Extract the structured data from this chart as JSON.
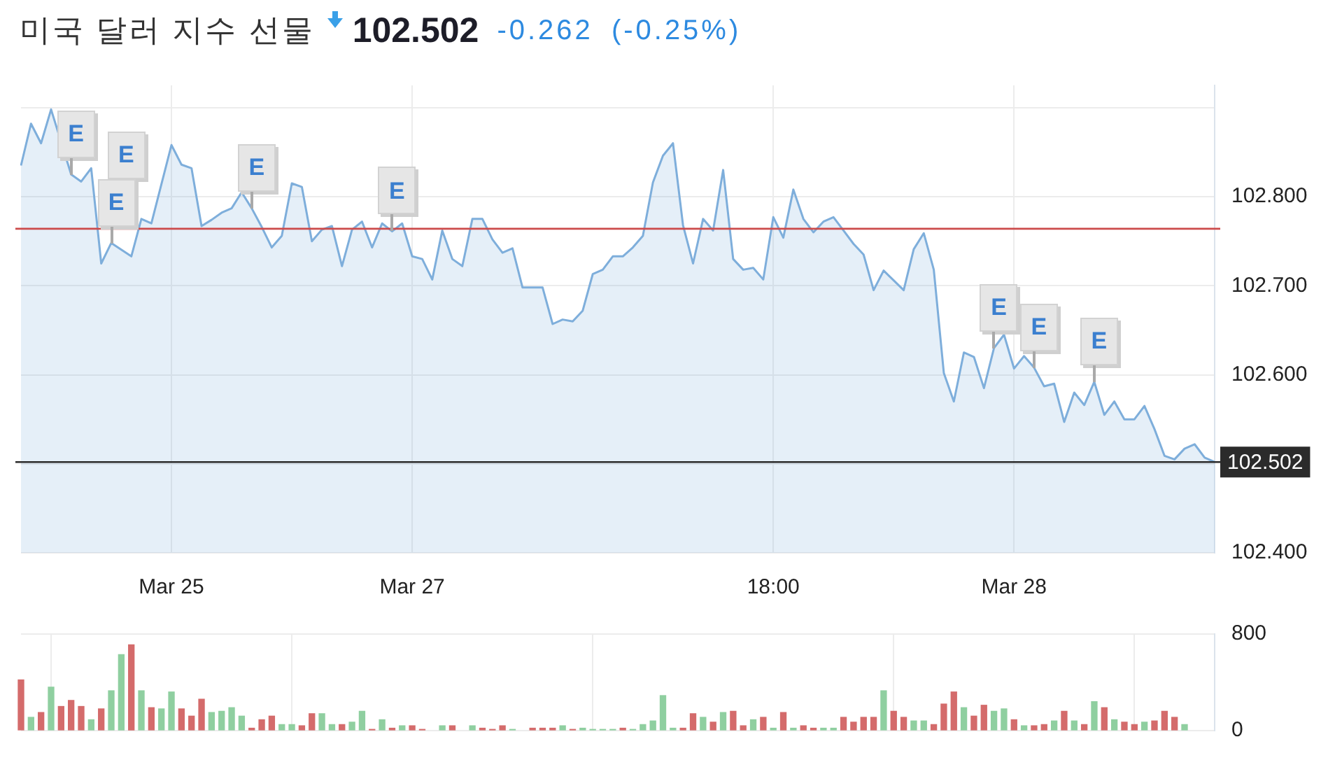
{
  "chart_data": [
    {
      "type": "area",
      "title": "미국 달러 지수 선물",
      "subtitle": "102.502 -0.262 (-0.25%)",
      "annotations": [
        {
          "text": "E",
          "y": 102.825
        },
        "E",
        {
          "text": "E",
          "y": 102.748
        },
        {
          "text": "E",
          "y": 102.787
        },
        {
          "text": "E",
          "y": 102.761
        },
        {
          "text": "E",
          "y": 102.63
        },
        {
          "text": "E",
          "y": 102.608
        },
        {
          "text": "E",
          "y": 102.592
        }
      ],
      "categories": [
        null,
        null,
        null,
        null,
        null,
        null,
        null,
        null,
        null,
        null,
        null,
        null,
        null,
        null,
        null,
        "Mar 25",
        null,
        null,
        null,
        null,
        null,
        null,
        null,
        null,
        null,
        null,
        null,
        null,
        null,
        null,
        null,
        null,
        null,
        null,
        null,
        null,
        null,
        null,
        null,
        "Mar 27",
        null,
        null,
        null,
        null,
        null,
        null,
        null,
        null,
        null,
        null,
        null,
        null,
        null,
        null,
        null,
        null,
        null,
        null,
        null,
        null,
        null,
        null,
        null,
        null,
        null,
        null,
        null,
        null,
        null,
        null,
        null,
        null,
        null,
        null,
        null,
        "18:00",
        null,
        null,
        null,
        null,
        null,
        null,
        null,
        null,
        null,
        null,
        null,
        null,
        null,
        null,
        null,
        null,
        null,
        null,
        null,
        null,
        null,
        null,
        null,
        "Mar 28",
        null,
        null,
        null,
        null,
        null,
        null,
        null,
        null,
        null,
        null,
        null,
        null,
        null,
        null,
        null,
        null,
        null,
        null,
        null,
        null
      ],
      "values": [
        102.835,
        102.882,
        102.86,
        102.898,
        null,
        102.825,
        102.817,
        102.832,
        102.725,
        102.748,
        null,
        102.733,
        102.775,
        102.77,
        102.814,
        102.858,
        102.836,
        102.832,
        102.767,
        102.774,
        102.782,
        102.787,
        102.805,
        102.787,
        102.766,
        102.743,
        102.756,
        102.815,
        102.811,
        102.75,
        102.763,
        102.767,
        102.722,
        102.763,
        102.772,
        102.743,
        102.77,
        102.761,
        102.77,
        102.733,
        102.73,
        102.707,
        102.762,
        102.73,
        102.722,
        102.775,
        102.775,
        102.752,
        102.737,
        102.742,
        102.698,
        102.698,
        102.698,
        102.657,
        102.662,
        102.66,
        102.672,
        102.713,
        102.718,
        102.733,
        102.733,
        102.743,
        102.756,
        102.816,
        102.846,
        102.86,
        102.768,
        102.725,
        102.775,
        102.762,
        102.83,
        102.73,
        102.718,
        102.72,
        102.707,
        102.777,
        102.754,
        102.808,
        102.775,
        102.76,
        102.772,
        102.777,
        102.762,
        102.747,
        102.735,
        102.695,
        102.717,
        102.706,
        102.695,
        102.741,
        102.759,
        102.718,
        102.602,
        102.57,
        102.625,
        102.62,
        102.585,
        102.63,
        102.645,
        102.607,
        102.621,
        102.608,
        102.587,
        102.59,
        102.547,
        102.58,
        102.566,
        102.592,
        102.555,
        102.57,
        102.55,
        102.55,
        102.565,
        102.539,
        102.509,
        102.505,
        102.517,
        102.522,
        102.507,
        102.502
      ],
      "color": "#7eaedb",
      "ylim": [
        102.4,
        102.925
      ],
      "yticks": [
        {
          "value": 102.4,
          "label": "102.400"
        },
        {
          "value": 102.5,
          "label": null
        },
        {
          "value": 102.6,
          "label": "102.600"
        },
        {
          "value": 102.7,
          "label": "102.700"
        },
        {
          "value": 102.8,
          "label": "102.800"
        },
        {
          "value": 102.9,
          "label": null
        }
      ],
      "grid": true,
      "ref_lines": [
        {
          "axis": "y",
          "value": 102.764,
          "color": "#cc4a4a"
        },
        {
          "axis": "y",
          "value": 102.502,
          "label": "102.502",
          "color": "#2b2b2b"
        }
      ]
    },
    {
      "type": "bar",
      "categories": [
        null,
        null,
        null,
        null,
        null,
        null,
        null,
        null,
        null,
        null,
        null,
        null,
        null,
        null,
        null,
        null,
        null,
        null,
        null,
        null,
        null,
        null,
        null,
        null,
        null,
        null,
        null,
        null,
        null,
        null,
        null,
        null,
        null,
        null,
        null,
        null,
        null,
        null,
        null,
        null,
        null,
        null,
        null,
        null,
        null,
        null,
        null,
        null,
        null,
        null,
        null,
        null,
        null,
        null,
        null,
        null,
        null,
        null,
        null,
        null,
        null,
        null,
        null,
        null,
        null,
        null,
        null,
        null,
        null,
        null,
        null,
        null,
        null,
        null,
        null,
        null,
        null,
        null,
        null,
        null,
        null,
        null,
        null,
        null,
        null,
        null,
        null,
        null,
        null,
        null,
        null,
        null,
        null,
        null,
        null,
        null,
        null,
        null,
        null,
        null,
        null,
        null,
        null,
        null,
        null,
        null,
        null,
        null,
        null,
        null,
        null,
        null,
        null,
        null,
        null,
        null,
        null,
        null,
        null,
        null
      ],
      "values": [
        420,
        110,
        150,
        360,
        200,
        250,
        200,
        90,
        180,
        330,
        630,
        710,
        330,
        190,
        180,
        320,
        180,
        120,
        260,
        150,
        160,
        190,
        120,
        20,
        90,
        120,
        50,
        50,
        40,
        140,
        140,
        50,
        50,
        70,
        160,
        10,
        90,
        20,
        40,
        40,
        10,
        null,
        40,
        40,
        null,
        40,
        20,
        10,
        40,
        10,
        null,
        20,
        20,
        20,
        40,
        10,
        20,
        10,
        10,
        10,
        20,
        10,
        50,
        80,
        290,
        20,
        20,
        140,
        110,
        70,
        150,
        160,
        40,
        90,
        110,
        20,
        150,
        20,
        40,
        20,
        20,
        20,
        110,
        70,
        110,
        110,
        330,
        160,
        110,
        80,
        80,
        50,
        220,
        320,
        190,
        120,
        210,
        160,
        180,
        90,
        40,
        40,
        50,
        80,
        160,
        80,
        50,
        240,
        190,
        90,
        70,
        50,
        70,
        80,
        160,
        110,
        50,
        null,
        null,
        null
      ],
      "colors": [
        "#d46b6b",
        "#8fcfa0",
        "#d46b6b",
        "#8fcfa0",
        "#d46b6b",
        "#d46b6b",
        "#d46b6b",
        "#8fcfa0",
        "#d46b6b",
        "#8fcfa0",
        "#8fcfa0",
        "#d46b6b",
        "#8fcfa0",
        "#d46b6b",
        "#8fcfa0",
        "#8fcfa0",
        "#d46b6b",
        "#d46b6b",
        "#d46b6b",
        "#8fcfa0",
        "#8fcfa0",
        "#8fcfa0",
        "#8fcfa0",
        "#d46b6b",
        "#d46b6b",
        "#d46b6b",
        "#8fcfa0",
        "#8fcfa0",
        "#d46b6b",
        "#d46b6b",
        "#8fcfa0",
        "#8fcfa0",
        "#d46b6b",
        "#8fcfa0",
        "#8fcfa0",
        "#d46b6b",
        "#8fcfa0",
        "#d46b6b",
        "#8fcfa0",
        "#d46b6b",
        "#d46b6b",
        null,
        "#8fcfa0",
        "#d46b6b",
        null,
        "#8fcfa0",
        "#d46b6b",
        "#d46b6b",
        "#d46b6b",
        "#8fcfa0",
        null,
        "#d46b6b",
        "#d46b6b",
        "#d46b6b",
        "#8fcfa0",
        "#d46b6b",
        "#8fcfa0",
        "#8fcfa0",
        "#8fcfa0",
        "#8fcfa0",
        "#d46b6b",
        "#8fcfa0",
        "#8fcfa0",
        "#8fcfa0",
        "#8fcfa0",
        "#8fcfa0",
        "#d46b6b",
        "#d46b6b",
        "#8fcfa0",
        "#d46b6b",
        "#8fcfa0",
        "#d46b6b",
        "#d46b6b",
        "#8fcfa0",
        "#d46b6b",
        "#8fcfa0",
        "#d46b6b",
        "#8fcfa0",
        "#d46b6b",
        "#d46b6b",
        "#8fcfa0",
        "#8fcfa0",
        "#d46b6b",
        "#d46b6b",
        "#d46b6b",
        "#d46b6b",
        "#8fcfa0",
        "#d46b6b",
        "#d46b6b",
        "#8fcfa0",
        "#8fcfa0",
        "#d46b6b",
        "#d46b6b",
        "#d46b6b",
        "#8fcfa0",
        "#d46b6b",
        "#d46b6b",
        "#8fcfa0",
        "#8fcfa0",
        "#d46b6b",
        "#8fcfa0",
        "#d46b6b",
        "#d46b6b",
        "#8fcfa0",
        "#d46b6b",
        "#8fcfa0",
        "#d46b6b",
        "#8fcfa0",
        "#d46b6b",
        "#8fcfa0",
        "#d46b6b",
        "#d46b6b",
        "#8fcfa0",
        "#d46b6b",
        "#d46b6b",
        "#d46b6b",
        "#8fcfa0",
        null,
        null,
        null
      ],
      "ylim": [
        0,
        800
      ],
      "yticks": [
        0,
        800
      ],
      "grid": true
    }
  ]
}
